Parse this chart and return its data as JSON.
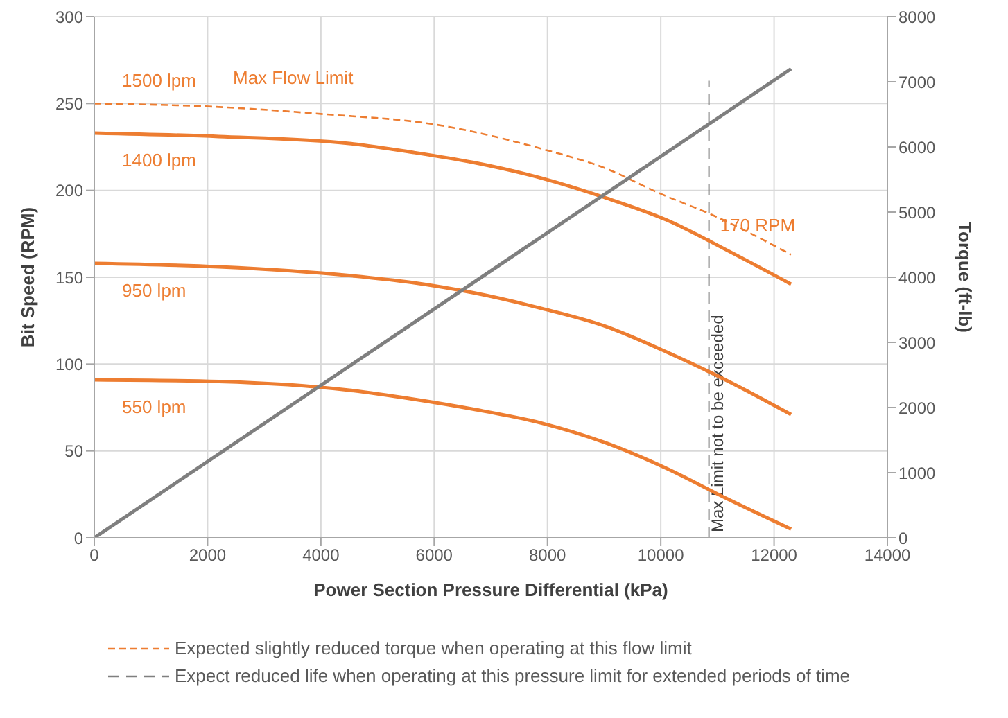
{
  "chart_data": {
    "type": "line",
    "xlabel": "Power Section Pressure Differential (kPa)",
    "ylabel": "Bit Speed (RPM)",
    "y2label": "Torque (ft-lb)",
    "xlim": [
      0,
      14000
    ],
    "xticks": [
      0,
      2000,
      4000,
      6000,
      8000,
      10000,
      12000,
      14000
    ],
    "ylim": [
      0,
      300
    ],
    "yticks": [
      0,
      50,
      100,
      150,
      200,
      250,
      300
    ],
    "y2lim": [
      0,
      8000
    ],
    "y2ticks": [
      0,
      1000,
      2000,
      3000,
      4000,
      5000,
      6000,
      7000,
      8000
    ],
    "grid": true,
    "marker": "none",
    "series": [
      {
        "name": "1400 lpm",
        "color": "#ed7d31",
        "line_style": "solid",
        "x": [
          0,
          2200,
          4500,
          5600,
          6700,
          7900,
          9000,
          10100,
          11200,
          12300
        ],
        "values": [
          233,
          231,
          227,
          222,
          216,
          207,
          196,
          183,
          165,
          146
        ]
      },
      {
        "name": "950 lpm",
        "color": "#ed7d31",
        "line_style": "solid",
        "x": [
          0,
          2200,
          4500,
          5600,
          6700,
          7900,
          9000,
          10100,
          11200,
          12300
        ],
        "values": [
          158,
          156,
          151,
          147,
          141,
          132,
          122,
          107,
          90,
          71
        ]
      },
      {
        "name": "550 lpm",
        "color": "#ed7d31",
        "line_style": "solid",
        "x": [
          0,
          2200,
          4500,
          5600,
          6700,
          7900,
          9000,
          10100,
          11200,
          12300
        ],
        "values": [
          91,
          90,
          85,
          80,
          74,
          66,
          55,
          40,
          22,
          5
        ]
      },
      {
        "name": "1500 lpm",
        "color": "#ed7d31",
        "line_style": "dashed",
        "x": [
          0,
          2200,
          4000,
          6000,
          8000,
          9000,
          10000,
          10900,
          12300
        ],
        "values": [
          250,
          248,
          244,
          238,
          223,
          213,
          198,
          186,
          163
        ]
      },
      {
        "color": "#7f7f7f",
        "line_style": "solid",
        "axis": "y2",
        "x": [
          0,
          12300
        ],
        "values": [
          0,
          7200
        ]
      }
    ],
    "ref_lines": [
      {
        "axis": "x",
        "value": 10850,
        "label": "Max Limit not to be exceeded",
        "color": "#7f7f7f",
        "line_style": "dashed"
      }
    ],
    "annotations": [
      "Max Flow Limit",
      "170 RPM",
      "Expected slightly reduced torque when operating at this flow limit",
      "Expect reduced life when operating at this pressure limit for extended periods of time"
    ]
  }
}
